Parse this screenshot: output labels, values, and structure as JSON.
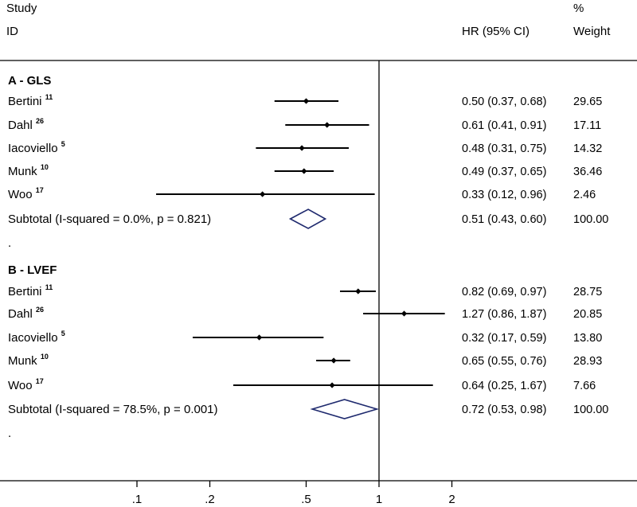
{
  "chart_data": {
    "type": "forest",
    "headers": {
      "study_top": "Study",
      "study_id": "ID",
      "pct_top": "%",
      "estimate": "HR (95% CI)",
      "weight": "Weight"
    },
    "x_axis": {
      "scale": "log",
      "ticks": [
        ".1",
        ".2",
        ".5",
        "1",
        "2"
      ],
      "tick_values": [
        0.1,
        0.2,
        0.5,
        1,
        2
      ],
      "null_line": 1
    },
    "groups": [
      {
        "title": "A - GLS",
        "studies": [
          {
            "study": "Bertini",
            "ref": "11",
            "hr": 0.5,
            "lo": 0.37,
            "hi": 0.68,
            "text": "0.50 (0.37, 0.68)",
            "weight": "29.65"
          },
          {
            "study": "Dahl",
            "ref": "26",
            "hr": 0.61,
            "lo": 0.41,
            "hi": 0.91,
            "text": "0.61 (0.41, 0.91)",
            "weight": "17.11"
          },
          {
            "study": "Iacoviello",
            "ref": "5",
            "hr": 0.48,
            "lo": 0.31,
            "hi": 0.75,
            "text": "0.48 (0.31, 0.75)",
            "weight": "14.32"
          },
          {
            "study": "Munk",
            "ref": "10",
            "hr": 0.49,
            "lo": 0.37,
            "hi": 0.65,
            "text": "0.49 (0.37, 0.65)",
            "weight": "36.46"
          },
          {
            "study": "Woo",
            "ref": "17",
            "hr": 0.33,
            "lo": 0.12,
            "hi": 0.96,
            "text": "0.33 (0.12, 0.96)",
            "weight": "2.46"
          }
        ],
        "subtotal": {
          "label": "Subtotal  (I-squared = 0.0%, p = 0.821)",
          "hr": 0.51,
          "lo": 0.43,
          "hi": 0.6,
          "text": "0.51 (0.43, 0.60)",
          "weight": "100.00"
        },
        "spacer": "."
      },
      {
        "title": "B - LVEF",
        "studies": [
          {
            "study": "Bertini",
            "ref": "11",
            "hr": 0.82,
            "lo": 0.69,
            "hi": 0.97,
            "text": "0.82 (0.69, 0.97)",
            "weight": "28.75"
          },
          {
            "study": "Dahl",
            "ref": "26",
            "hr": 1.27,
            "lo": 0.86,
            "hi": 1.87,
            "text": "1.27 (0.86, 1.87)",
            "weight": "20.85"
          },
          {
            "study": "Iacoviello",
            "ref": "5",
            "hr": 0.32,
            "lo": 0.17,
            "hi": 0.59,
            "text": "0.32 (0.17, 0.59)",
            "weight": "13.80"
          },
          {
            "study": "Munk",
            "ref": "10",
            "hr": 0.65,
            "lo": 0.55,
            "hi": 0.76,
            "text": "0.65 (0.55, 0.76)",
            "weight": "28.93"
          },
          {
            "study": "Woo",
            "ref": "17",
            "hr": 0.64,
            "lo": 0.25,
            "hi": 1.67,
            "text": "0.64 (0.25, 1.67)",
            "weight": "7.66"
          }
        ],
        "subtotal": {
          "label": "Subtotal  (I-squared = 78.5%, p = 0.001)",
          "hr": 0.72,
          "lo": 0.53,
          "hi": 0.98,
          "text": "0.72 (0.53, 0.98)",
          "weight": "100.00"
        },
        "spacer": "."
      }
    ],
    "colors": {
      "marker": "#000000",
      "diamond_stroke": "#1f2a6e",
      "lines": "#000000"
    }
  }
}
